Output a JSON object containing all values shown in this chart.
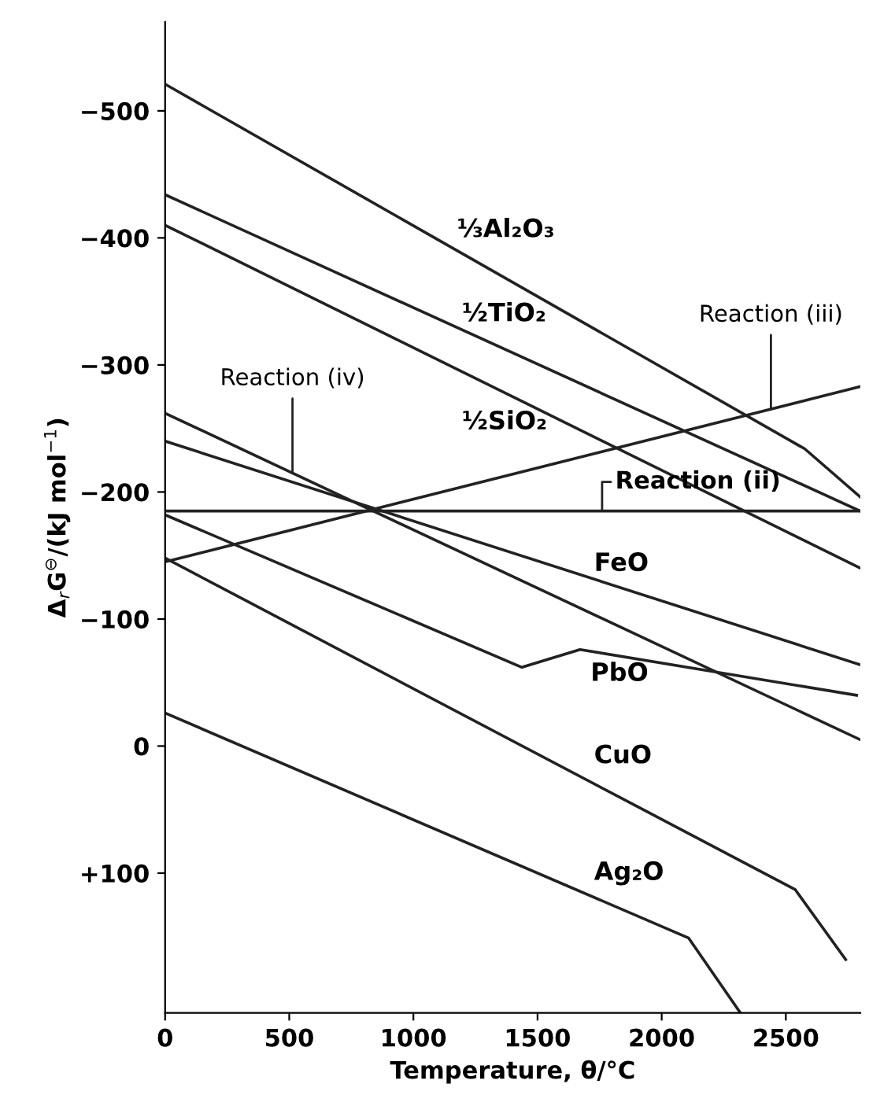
{
  "chart_data": {
    "type": "line",
    "xlabel": "Temperature, θ/°C",
    "ylabel": "Δ$_{r}$G$^{⊖}$/(kJ mol$^{−1}$)",
    "xlim": [
      0,
      2800
    ],
    "xticks": [
      0,
      500,
      1000,
      1500,
      2000,
      2500
    ],
    "ylim": [
      210,
      -570
    ],
    "yticks": [
      {
        "value": -500,
        "label": "−500"
      },
      {
        "value": -400,
        "label": "−400"
      },
      {
        "value": -300,
        "label": "−300"
      },
      {
        "value": -200,
        "label": "−200"
      },
      {
        "value": -100,
        "label": "−100"
      },
      0,
      {
        "value": 100,
        "label": "+100"
      }
    ],
    "grid": false,
    "legend": false,
    "marker": "none",
    "line_style": "solid",
    "series": [
      {
        "color": "#222222",
        "x": [
          0,
          2576,
          2800
        ],
        "values": [
          -521,
          -234,
          -196
        ]
      },
      {
        "color": "#222222",
        "x": [
          0,
          2800
        ],
        "values": [
          -434,
          -185
        ]
      },
      {
        "color": "#222222",
        "x": [
          0,
          2800
        ],
        "values": [
          -410,
          -140
        ]
      },
      {
        "color": "#222222",
        "x": [
          0,
          2800
        ],
        "values": [
          -145,
          -283
        ]
      },
      {
        "color": "#222222",
        "x": [
          0,
          2800
        ],
        "values": [
          -185,
          -185
        ]
      },
      {
        "color": "#222222",
        "x": [
          0,
          2800
        ],
        "values": [
          -262,
          -5
        ]
      },
      {
        "color": "#222222",
        "x": [
          0,
          2800
        ],
        "values": [
          -240,
          -64
        ]
      },
      {
        "color": "#222222",
        "x": [
          0,
          1437,
          1671,
          2785
        ],
        "values": [
          -182,
          -62,
          -76,
          -40
        ]
      },
      {
        "color": "#222222",
        "x": [
          0,
          2538,
          2741
        ],
        "values": [
          -148,
          113,
          168
        ]
      },
      {
        "color": "#222222",
        "x": [
          0,
          2108,
          2317
        ],
        "values": [
          -26,
          151,
          210
        ]
      }
    ],
    "annotations": [
      "⅓Al₂O₃",
      "½TiO₂",
      "½SiO₂",
      {
        "text": "Reaction (iii)",
        "x": 2440,
        "y": -265
      },
      {
        "text": "Reaction (iv)",
        "x": 513,
        "y": -215
      },
      {
        "text": "Reaction (ii)",
        "x": 1760,
        "y": -185
      },
      "FeO",
      "PbO",
      "CuO",
      "Ag₂O"
    ]
  }
}
